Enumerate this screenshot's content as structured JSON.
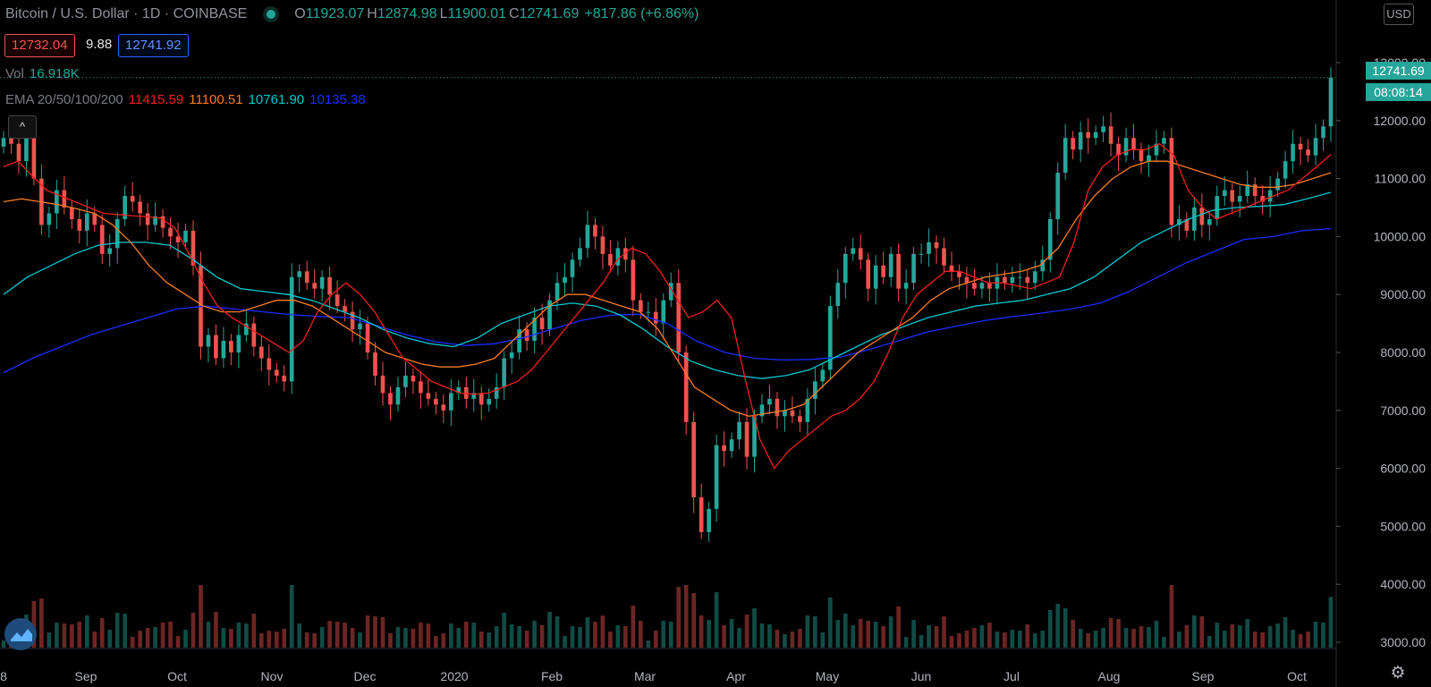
{
  "header": {
    "symbol": "Bitcoin / U.S. Dollar · 1D · COINBASE",
    "o_label": "O",
    "o_value": "11923.07",
    "h_label": "H",
    "h_value": "12874.98",
    "l_label": "L",
    "l_value": "11900.01",
    "c_label": "C",
    "c_value": "12741.69",
    "change": "+817.86 (+6.86%)"
  },
  "trade": {
    "bid": "12732.04",
    "spread": "9.88",
    "ask": "12741.92"
  },
  "volume": {
    "label": "Vol",
    "value": "16.918K"
  },
  "ema": {
    "label": "EMA 20/50/100/200",
    "e20": "11415.59",
    "e50": "11100.51",
    "e100": "10761.90",
    "e200": "10135.38"
  },
  "controls": {
    "currency": "USD",
    "collapse": "^"
  },
  "price_tag": "12741.69",
  "countdown": "08:08:14",
  "colors": {
    "up": "#26a69a",
    "down": "#ef5350",
    "ema20": "#ef1f1f",
    "ema50": "#f57c24",
    "ema100": "#00c8d0",
    "ema200": "#1a2dff"
  },
  "chart_data": {
    "type": "candlestick",
    "ylim": [
      3000,
      13200
    ],
    "y_ticks": [
      "13000.00",
      "12000.00",
      "11000.00",
      "10000.00",
      "9000.00",
      "8000.00",
      "7000.00",
      "6000.00",
      "5000.00",
      "4000.00",
      "3000.00"
    ],
    "x_ticks": [
      "8",
      "Sep",
      "Oct",
      "Nov",
      "Dec",
      "2020",
      "Feb",
      "Mar",
      "Apr",
      "May",
      "Jun",
      "Jul",
      "Aug",
      "Sep",
      "Oct"
    ],
    "last_price": 12741.69,
    "closes": [
      11700,
      11600,
      11300,
      11800,
      11000,
      10200,
      10400,
      10800,
      10500,
      10300,
      10100,
      10400,
      10200,
      9700,
      9800,
      10300,
      10700,
      10600,
      10400,
      10200,
      10350,
      10150,
      10000,
      9900,
      10100,
      9500,
      8100,
      8300,
      7900,
      8200,
      8000,
      8300,
      8500,
      8100,
      7900,
      7700,
      7600,
      7500,
      9300,
      9400,
      9200,
      9100,
      9300,
      9000,
      8800,
      8700,
      8400,
      8500,
      8000,
      7600,
      7300,
      7100,
      7400,
      7600,
      7500,
      7300,
      7200,
      7100,
      7000,
      7300,
      7400,
      7200,
      7300,
      7100,
      7200,
      7400,
      7900,
      8000,
      8400,
      8200,
      8600,
      8400,
      8900,
      9200,
      9300,
      9600,
      9800,
      10200,
      10000,
      9700,
      9500,
      9800,
      9600,
      8900,
      8700,
      8700,
      8500,
      8900,
      9200,
      8000,
      6800,
      5500,
      4900,
      5300,
      6400,
      6300,
      6500,
      6800,
      6200,
      6900,
      7100,
      7200,
      6900,
      7000,
      6900,
      6800,
      7200,
      7500,
      7700,
      8800,
      9200,
      9700,
      9800,
      9600,
      9100,
      9500,
      9300,
      9700,
      9100,
      9200,
      9700,
      9700,
      9900,
      9800,
      9500,
      9400,
      9300,
      9200,
      9100,
      9200,
      9100,
      9300,
      9200,
      9300,
      9300,
      9200,
      9400,
      9600,
      10300,
      11100,
      11700,
      11500,
      11800,
      11700,
      11800,
      11900,
      11600,
      11400,
      11700,
      11500,
      11300,
      11400,
      11600,
      11700,
      10200,
      10300,
      10100,
      10500,
      10200,
      10300,
      10700,
      10800,
      10600,
      10700,
      10900,
      10700,
      10600,
      10800,
      11000,
      11300,
      11600,
      11500,
      11400,
      11700,
      11900,
      12741.69
    ],
    "ema20": [
      11200,
      11300,
      11050,
      10800,
      10700,
      10600,
      10500,
      10400,
      10380,
      10360,
      10340,
      10320,
      10150,
      9700,
      9200,
      8800,
      8600,
      8450,
      8300,
      8150,
      8000,
      8200,
      8700,
      9000,
      9200,
      9000,
      8700,
      8300,
      7900,
      7700,
      7500,
      7400,
      7300,
      7280,
      7300,
      7400,
      7500,
      7700,
      8000,
      8300,
      8600,
      8900,
      9200,
      9600,
      9800,
      9700,
      9400,
      9000,
      8600,
      8700,
      8900,
      8600,
      7500,
      6500,
      6000,
      6300,
      6500,
      6700,
      6900,
      7000,
      7200,
      7500,
      8000,
      8600,
      9000,
      9200,
      9400,
      9400,
      9300,
      9200,
      9200,
      9150,
      9100,
      9200,
      9300,
      9900,
      10800,
      11200,
      11400,
      11500,
      11500,
      11600,
      11400,
      10800,
      10500,
      10300,
      10400,
      10500,
      10600,
      10700,
      10800,
      11000,
      11200,
      11415.59
    ],
    "ema50": [
      10600,
      10650,
      10600,
      10550,
      10480,
      10400,
      10200,
      9900,
      9500,
      9200,
      9000,
      8800,
      8700,
      8700,
      8800,
      8900,
      8900,
      8800,
      8600,
      8400,
      8200,
      8000,
      7900,
      7800,
      7750,
      7750,
      7800,
      7900,
      8200,
      8500,
      8800,
      9000,
      9000,
      8900,
      8800,
      8700,
      8400,
      7900,
      7400,
      7200,
      7000,
      6900,
      6950,
      7000,
      7100,
      7400,
      7700,
      8000,
      8200,
      8400,
      8600,
      8900,
      9100,
      9200,
      9300,
      9350,
      9400,
      9500,
      9800,
      10300,
      10700,
      11000,
      11200,
      11300,
      11300,
      11200,
      11100,
      11000,
      10900,
      10850,
      10850,
      10900,
      11000,
      11100.51
    ],
    "ema100": [
      9000,
      9300,
      9500,
      9700,
      9850,
      9900,
      9900,
      9850,
      9600,
      9300,
      9100,
      9050,
      9000,
      8900,
      8750,
      8600,
      8400,
      8250,
      8150,
      8100,
      8250,
      8500,
      8650,
      8800,
      8850,
      8800,
      8650,
      8400,
      8100,
      7850,
      7700,
      7600,
      7550,
      7600,
      7700,
      7900,
      8100,
      8300,
      8450,
      8600,
      8700,
      8800,
      8850,
      8900,
      9000,
      9100,
      9300,
      9600,
      9900,
      10100,
      10300,
      10450,
      10500,
      10520,
      10550,
      10650,
      10761.9
    ],
    "ema200": [
      7650,
      7900,
      8100,
      8300,
      8450,
      8600,
      8750,
      8800,
      8750,
      8700,
      8650,
      8620,
      8600,
      8450,
      8300,
      8180,
      8120,
      8150,
      8250,
      8400,
      8550,
      8640,
      8660,
      8500,
      8200,
      8000,
      7900,
      7870,
      7880,
      7920,
      8050,
      8200,
      8350,
      8450,
      8550,
      8620,
      8680,
      8750,
      8850,
      9050,
      9300,
      9550,
      9750,
      9950,
      10000,
      10100,
      10135.38
    ]
  }
}
